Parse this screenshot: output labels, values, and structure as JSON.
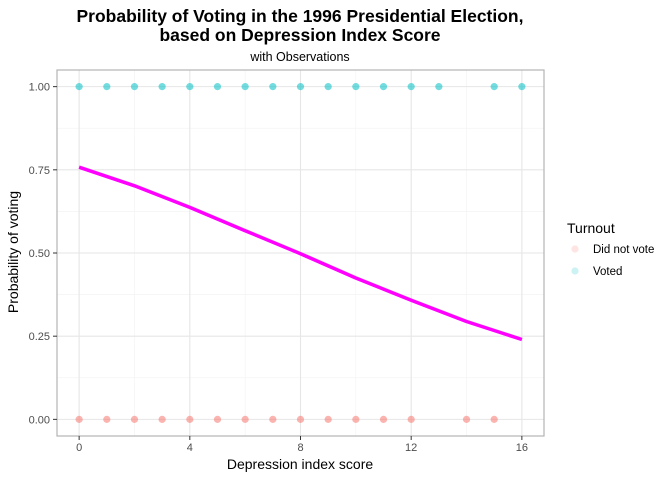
{
  "chart_data": {
    "type": "scatter",
    "title_line1": "Probability of Voting in the 1996 Presidential Election,",
    "title_line2": "based on Depression Index Score",
    "subtitle": "with Observations",
    "xlabel": "Depression index score",
    "ylabel": "Probability of voting",
    "xlim": [
      -0.8,
      16.8
    ],
    "ylim": [
      -0.05,
      1.05
    ],
    "x_ticks": [
      0,
      4,
      8,
      12,
      16
    ],
    "y_ticks": [
      0.0,
      0.25,
      0.5,
      0.75,
      1.0
    ],
    "x_tick_labels": [
      "0",
      "4",
      "8",
      "12",
      "16"
    ],
    "y_tick_labels": [
      "0.00",
      "0.25",
      "0.50",
      "0.75",
      "1.00"
    ],
    "grid": true,
    "legend_position": "right",
    "legend_title": "Turnout",
    "series": [
      {
        "name": "Did not vote",
        "color": "#f8766d",
        "points": [
          {
            "x": 0,
            "y": 0
          },
          {
            "x": 1,
            "y": 0
          },
          {
            "x": 2,
            "y": 0
          },
          {
            "x": 3,
            "y": 0
          },
          {
            "x": 4,
            "y": 0
          },
          {
            "x": 5,
            "y": 0
          },
          {
            "x": 6,
            "y": 0
          },
          {
            "x": 7,
            "y": 0
          },
          {
            "x": 8,
            "y": 0
          },
          {
            "x": 9,
            "y": 0
          },
          {
            "x": 10,
            "y": 0
          },
          {
            "x": 11,
            "y": 0
          },
          {
            "x": 12,
            "y": 0
          },
          {
            "x": 14,
            "y": 0
          },
          {
            "x": 15,
            "y": 0
          }
        ]
      },
      {
        "name": "Voted",
        "color": "#00bfc4",
        "points": [
          {
            "x": 0,
            "y": 1
          },
          {
            "x": 1,
            "y": 1
          },
          {
            "x": 2,
            "y": 1
          },
          {
            "x": 3,
            "y": 1
          },
          {
            "x": 4,
            "y": 1
          },
          {
            "x": 5,
            "y": 1
          },
          {
            "x": 6,
            "y": 1
          },
          {
            "x": 7,
            "y": 1
          },
          {
            "x": 8,
            "y": 1
          },
          {
            "x": 9,
            "y": 1
          },
          {
            "x": 10,
            "y": 1
          },
          {
            "x": 11,
            "y": 1
          },
          {
            "x": 12,
            "y": 1
          },
          {
            "x": 13,
            "y": 1
          },
          {
            "x": 15,
            "y": 1
          },
          {
            "x": 16,
            "y": 1
          }
        ]
      }
    ],
    "fitted_line": {
      "color": "#ff00ff",
      "points": [
        {
          "x": 0,
          "y": 0.758
        },
        {
          "x": 2,
          "y": 0.702
        },
        {
          "x": 4,
          "y": 0.637
        },
        {
          "x": 6,
          "y": 0.567
        },
        {
          "x": 8,
          "y": 0.498
        },
        {
          "x": 10,
          "y": 0.425
        },
        {
          "x": 12,
          "y": 0.358
        },
        {
          "x": 14,
          "y": 0.294
        },
        {
          "x": 16,
          "y": 0.24
        }
      ]
    },
    "colors": {
      "panel_border": "#b3b3b3",
      "grid_major": "#e6e6e6",
      "grid_minor": "#f2f2f2"
    }
  }
}
